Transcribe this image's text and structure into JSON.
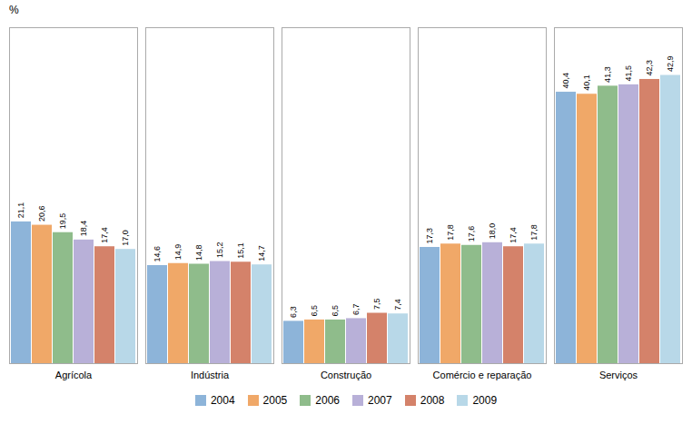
{
  "chart_data": {
    "type": "bar",
    "ylabel": "%",
    "categories": [
      "Agrícola",
      "Indústria",
      "Construção",
      "Comércio e reparação",
      "Serviços"
    ],
    "series": [
      {
        "name": "2004",
        "color": "#8DB4D9",
        "values": [
          21.1,
          14.6,
          6.3,
          17.3,
          40.4
        ],
        "value_labels": [
          "21,1",
          "14,6",
          "6,3",
          "17,3",
          "40,4"
        ]
      },
      {
        "name": "2005",
        "color": "#F0A868",
        "values": [
          20.6,
          14.9,
          6.5,
          17.8,
          40.1
        ],
        "value_labels": [
          "20,6",
          "14,9",
          "6,5",
          "17,8",
          "40,1"
        ]
      },
      {
        "name": "2006",
        "color": "#8FBC8B",
        "values": [
          19.5,
          14.8,
          6.5,
          17.6,
          41.3
        ],
        "value_labels": [
          "19,5",
          "14,8",
          "6,5",
          "17,6",
          "41,3"
        ]
      },
      {
        "name": "2007",
        "color": "#B8B0D8",
        "values": [
          18.4,
          15.2,
          6.7,
          18.0,
          41.5
        ],
        "value_labels": [
          "18,4",
          "15,2",
          "6,7",
          "18,0",
          "41,5"
        ]
      },
      {
        "name": "2008",
        "color": "#D4826A",
        "values": [
          17.4,
          15.1,
          7.5,
          17.4,
          42.3
        ],
        "value_labels": [
          "17,4",
          "15,1",
          "7,5",
          "17,4",
          "42,3"
        ]
      },
      {
        "name": "2009",
        "color": "#B8D8E8",
        "values": [
          17.0,
          14.7,
          7.4,
          17.8,
          42.9
        ],
        "value_labels": [
          "17,0",
          "14,7",
          "7,4",
          "17,8",
          "42,9"
        ]
      }
    ],
    "ylim": [
      0,
      50
    ],
    "tick_labels": "x",
    "data_labels": true,
    "grid": false,
    "legend": "bottom"
  }
}
